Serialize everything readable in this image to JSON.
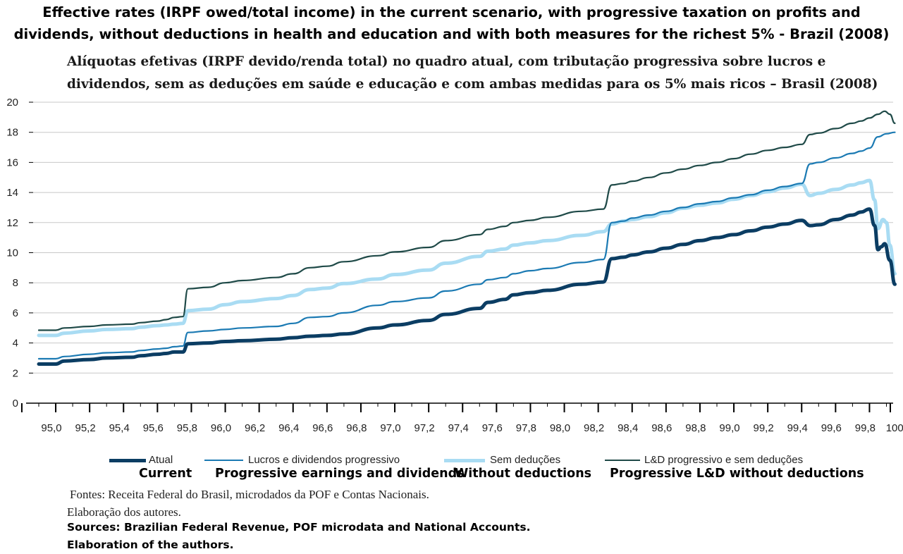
{
  "title_en": "Effective rates (IRPF owed/total income) in the current scenario, with progressive taxation on profits and dividends, without deductions in health and education and with both measures for the richest 5% - Brazil (2008)",
  "title_pt": "Alíquotas efetivas (IRPF devido/renda total) no quadro atual, com tributação progressiva sobre lucros e dividendos, sem as deduções em saúde e educação e com ambas medidas para os 5% mais ricos – Brasil (2008)",
  "legend": [
    {
      "pt": "Atual",
      "en": "Current"
    },
    {
      "pt": "Lucros e dividendos progressivo",
      "en": "Progressive earnings and dividends"
    },
    {
      "pt": "Sem deduções",
      "en": "Without deductions"
    },
    {
      "pt": "L&D progressivo e sem deduções",
      "en": "Progressive L&D without deductions"
    }
  ],
  "sources": {
    "pt_line1": "Fontes: Receita Federal do Brasil, microdados da POF e Contas Nacionais.",
    "pt_line2": "Elaboração dos autores.",
    "en_line1": "Sources: Brazilian Federal Revenue, POF microdata and National Accounts.",
    "en_line2": "Elaboration of the authors."
  },
  "chart_data": {
    "type": "line",
    "xlim": [
      95.0,
      100.0
    ],
    "ylim": [
      0,
      20
    ],
    "x_ticks": [
      "95,0",
      "95,2",
      "95,4",
      "95,6",
      "95,8",
      "96,0",
      "96,2",
      "96,4",
      "96,6",
      "96,8",
      "97,0",
      "97,2",
      "97,4",
      "97,6",
      "97,8",
      "98,0",
      "98,2",
      "98,4",
      "98,6",
      "98,8",
      "99,0",
      "99,2",
      "99,4",
      "99,6",
      "99,8",
      "100,0"
    ],
    "y_ticks": [
      "0",
      "2",
      "4",
      "6",
      "8",
      "10",
      "12",
      "14",
      "16",
      "18",
      "20"
    ],
    "grid": "horizontal",
    "legend_position": "bottom",
    "series": [
      {
        "name": "Atual",
        "color": "#0b3d63",
        "points": [
          [
            95.0,
            2.6
          ],
          [
            95.1,
            2.6
          ],
          [
            95.15,
            2.8
          ],
          [
            95.3,
            2.9
          ],
          [
            95.4,
            3.0
          ],
          [
            95.55,
            3.05
          ],
          [
            95.6,
            3.15
          ],
          [
            95.7,
            3.25
          ],
          [
            95.75,
            3.3
          ],
          [
            95.8,
            3.4
          ],
          [
            95.85,
            3.4
          ],
          [
            95.88,
            3.95
          ],
          [
            96.0,
            4.0
          ],
          [
            96.1,
            4.1
          ],
          [
            96.2,
            4.15
          ],
          [
            96.4,
            4.25
          ],
          [
            96.5,
            4.35
          ],
          [
            96.6,
            4.45
          ],
          [
            96.7,
            4.5
          ],
          [
            96.8,
            4.6
          ],
          [
            97.0,
            5.0
          ],
          [
            97.1,
            5.2
          ],
          [
            97.3,
            5.5
          ],
          [
            97.4,
            5.9
          ],
          [
            97.6,
            6.3
          ],
          [
            97.65,
            6.7
          ],
          [
            97.75,
            6.9
          ],
          [
            97.8,
            7.2
          ],
          [
            97.9,
            7.35
          ],
          [
            98.0,
            7.5
          ],
          [
            98.2,
            7.9
          ],
          [
            98.33,
            8.05
          ],
          [
            98.38,
            9.6
          ],
          [
            98.45,
            9.7
          ],
          [
            98.5,
            9.85
          ],
          [
            98.6,
            10.05
          ],
          [
            98.7,
            10.3
          ],
          [
            98.8,
            10.55
          ],
          [
            98.9,
            10.8
          ],
          [
            99.0,
            11.0
          ],
          [
            99.1,
            11.2
          ],
          [
            99.2,
            11.45
          ],
          [
            99.3,
            11.7
          ],
          [
            99.4,
            11.9
          ],
          [
            99.5,
            12.15
          ],
          [
            99.55,
            11.8
          ],
          [
            99.6,
            11.85
          ],
          [
            99.7,
            12.2
          ],
          [
            99.8,
            12.5
          ],
          [
            99.85,
            12.7
          ],
          [
            99.9,
            12.9
          ],
          [
            99.93,
            11.8
          ],
          [
            99.95,
            10.2
          ],
          [
            99.97,
            10.4
          ],
          [
            99.99,
            10.6
          ],
          [
            100.02,
            9.5
          ],
          [
            100.05,
            7.9
          ]
        ]
      },
      {
        "name": "Lucros e dividendos progressivo",
        "color": "#1b7ab3",
        "points": [
          [
            95.0,
            2.95
          ],
          [
            95.1,
            2.95
          ],
          [
            95.15,
            3.1
          ],
          [
            95.3,
            3.25
          ],
          [
            95.4,
            3.35
          ],
          [
            95.55,
            3.4
          ],
          [
            95.6,
            3.5
          ],
          [
            95.7,
            3.6
          ],
          [
            95.75,
            3.65
          ],
          [
            95.8,
            3.75
          ],
          [
            95.85,
            3.8
          ],
          [
            95.88,
            4.7
          ],
          [
            96.0,
            4.8
          ],
          [
            96.1,
            4.9
          ],
          [
            96.2,
            5.0
          ],
          [
            96.4,
            5.1
          ],
          [
            96.5,
            5.3
          ],
          [
            96.6,
            5.7
          ],
          [
            96.7,
            5.75
          ],
          [
            96.8,
            6.0
          ],
          [
            97.0,
            6.5
          ],
          [
            97.1,
            6.75
          ],
          [
            97.3,
            7.0
          ],
          [
            97.4,
            7.45
          ],
          [
            97.6,
            7.9
          ],
          [
            97.65,
            8.2
          ],
          [
            97.75,
            8.35
          ],
          [
            97.8,
            8.6
          ],
          [
            97.9,
            8.8
          ],
          [
            98.0,
            8.95
          ],
          [
            98.2,
            9.35
          ],
          [
            98.33,
            9.55
          ],
          [
            98.38,
            12.0
          ],
          [
            98.45,
            12.1
          ],
          [
            98.5,
            12.3
          ],
          [
            98.6,
            12.5
          ],
          [
            98.7,
            12.75
          ],
          [
            98.8,
            13.0
          ],
          [
            98.9,
            13.25
          ],
          [
            99.0,
            13.4
          ],
          [
            99.1,
            13.65
          ],
          [
            99.2,
            13.85
          ],
          [
            99.3,
            14.15
          ],
          [
            99.4,
            14.4
          ],
          [
            99.5,
            14.6
          ],
          [
            99.55,
            15.9
          ],
          [
            99.6,
            16.0
          ],
          [
            99.7,
            16.3
          ],
          [
            99.8,
            16.6
          ],
          [
            99.85,
            16.75
          ],
          [
            99.9,
            16.95
          ],
          [
            99.95,
            17.7
          ],
          [
            100.0,
            17.9
          ],
          [
            100.05,
            18.0
          ]
        ]
      },
      {
        "name": "Sem deduções",
        "color": "#a9dcf3",
        "points": [
          [
            95.0,
            4.5
          ],
          [
            95.1,
            4.5
          ],
          [
            95.15,
            4.65
          ],
          [
            95.3,
            4.8
          ],
          [
            95.4,
            4.9
          ],
          [
            95.55,
            4.95
          ],
          [
            95.6,
            5.05
          ],
          [
            95.7,
            5.15
          ],
          [
            95.75,
            5.2
          ],
          [
            95.8,
            5.25
          ],
          [
            95.85,
            5.3
          ],
          [
            95.88,
            6.15
          ],
          [
            96.0,
            6.25
          ],
          [
            96.1,
            6.55
          ],
          [
            96.2,
            6.75
          ],
          [
            96.4,
            6.95
          ],
          [
            96.5,
            7.15
          ],
          [
            96.6,
            7.55
          ],
          [
            96.7,
            7.65
          ],
          [
            96.8,
            7.95
          ],
          [
            97.0,
            8.25
          ],
          [
            97.1,
            8.55
          ],
          [
            97.3,
            8.85
          ],
          [
            97.4,
            9.3
          ],
          [
            97.6,
            9.75
          ],
          [
            97.65,
            10.1
          ],
          [
            97.75,
            10.25
          ],
          [
            97.8,
            10.5
          ],
          [
            97.9,
            10.65
          ],
          [
            98.0,
            10.8
          ],
          [
            98.2,
            11.15
          ],
          [
            98.33,
            11.4
          ],
          [
            98.38,
            11.9
          ],
          [
            98.45,
            12.1
          ],
          [
            98.5,
            12.2
          ],
          [
            98.6,
            12.4
          ],
          [
            98.7,
            12.65
          ],
          [
            98.8,
            12.95
          ],
          [
            98.9,
            13.15
          ],
          [
            99.0,
            13.3
          ],
          [
            99.1,
            13.55
          ],
          [
            99.2,
            13.8
          ],
          [
            99.3,
            14.05
          ],
          [
            99.4,
            14.3
          ],
          [
            99.5,
            14.55
          ],
          [
            99.55,
            13.8
          ],
          [
            99.6,
            13.95
          ],
          [
            99.7,
            14.2
          ],
          [
            99.8,
            14.5
          ],
          [
            99.85,
            14.65
          ],
          [
            99.9,
            14.8
          ],
          [
            99.93,
            13.5
          ],
          [
            99.95,
            11.6
          ],
          [
            99.98,
            12.2
          ],
          [
            100.0,
            12.0
          ],
          [
            100.02,
            10.5
          ],
          [
            100.05,
            8.6
          ]
        ]
      },
      {
        "name": "L&D progressivo e sem deduções",
        "color": "#1f4a48",
        "points": [
          [
            95.0,
            4.85
          ],
          [
            95.1,
            4.85
          ],
          [
            95.15,
            5.0
          ],
          [
            95.3,
            5.1
          ],
          [
            95.4,
            5.2
          ],
          [
            95.55,
            5.25
          ],
          [
            95.6,
            5.35
          ],
          [
            95.7,
            5.45
          ],
          [
            95.75,
            5.55
          ],
          [
            95.8,
            5.7
          ],
          [
            95.85,
            5.75
          ],
          [
            95.88,
            7.6
          ],
          [
            96.0,
            7.7
          ],
          [
            96.1,
            8.0
          ],
          [
            96.2,
            8.15
          ],
          [
            96.4,
            8.35
          ],
          [
            96.5,
            8.6
          ],
          [
            96.6,
            9.0
          ],
          [
            96.7,
            9.1
          ],
          [
            96.8,
            9.4
          ],
          [
            97.0,
            9.8
          ],
          [
            97.1,
            10.05
          ],
          [
            97.3,
            10.35
          ],
          [
            97.4,
            10.8
          ],
          [
            97.6,
            11.2
          ],
          [
            97.65,
            11.55
          ],
          [
            97.75,
            11.75
          ],
          [
            97.8,
            12.0
          ],
          [
            97.9,
            12.15
          ],
          [
            98.0,
            12.35
          ],
          [
            98.2,
            12.75
          ],
          [
            98.33,
            12.9
          ],
          [
            98.38,
            14.5
          ],
          [
            98.45,
            14.6
          ],
          [
            98.5,
            14.75
          ],
          [
            98.6,
            15.0
          ],
          [
            98.7,
            15.3
          ],
          [
            98.8,
            15.55
          ],
          [
            98.9,
            15.8
          ],
          [
            99.0,
            16.0
          ],
          [
            99.1,
            16.25
          ],
          [
            99.2,
            16.55
          ],
          [
            99.3,
            16.8
          ],
          [
            99.4,
            17.0
          ],
          [
            99.5,
            17.2
          ],
          [
            99.55,
            17.85
          ],
          [
            99.6,
            17.95
          ],
          [
            99.7,
            18.25
          ],
          [
            99.8,
            18.6
          ],
          [
            99.85,
            18.75
          ],
          [
            99.9,
            18.95
          ],
          [
            99.95,
            19.2
          ],
          [
            99.99,
            19.4
          ],
          [
            100.02,
            19.2
          ],
          [
            100.05,
            18.6
          ]
        ]
      }
    ]
  }
}
